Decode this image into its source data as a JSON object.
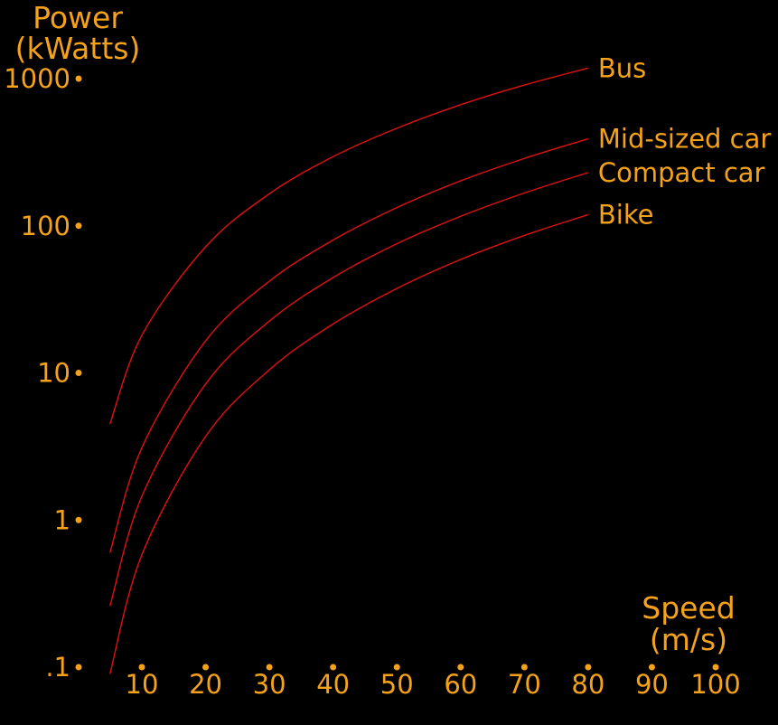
{
  "chart_data": {
    "type": "line",
    "title": "",
    "ylabel_lines": [
      "Power",
      "(kWatts)"
    ],
    "xlabel_lines": [
      "Speed",
      "(m/s)"
    ],
    "y_scale": "log",
    "xlim": [
      5,
      100
    ],
    "ylim": [
      0.1,
      1000
    ],
    "x_ticks": [
      10,
      20,
      30,
      40,
      50,
      60,
      70,
      80,
      90,
      100
    ],
    "x_tick_labels": [
      "10",
      "20",
      "30",
      "40",
      "50",
      "60",
      "70",
      "80",
      "90",
      "100"
    ],
    "y_ticks": [
      0.1,
      1,
      10,
      100,
      1000
    ],
    "y_tick_labels": [
      ".1",
      "1",
      "10",
      "100",
      "1000"
    ],
    "grid": false,
    "line_color": "#e01010",
    "text_color": "#f5a21a",
    "background": "#000000",
    "series": [
      {
        "name": "Bus",
        "x": [
          5,
          10,
          20,
          30,
          40,
          50,
          60,
          70,
          80
        ],
        "y": [
          4.5,
          18,
          72,
          165,
          295,
          460,
          665,
          905,
          1180
        ]
      },
      {
        "name": "Mid-sized car",
        "x": [
          5,
          10,
          20,
          30,
          40,
          50,
          60,
          70,
          80
        ],
        "y": [
          0.6,
          3.1,
          16.5,
          42,
          80,
          133,
          202,
          287,
          390
        ]
      },
      {
        "name": "Compact car",
        "x": [
          5,
          10,
          20,
          30,
          40,
          50,
          60,
          70,
          80
        ],
        "y": [
          0.26,
          1.45,
          8.4,
          22.5,
          44.5,
          75.5,
          116,
          167,
          230
        ]
      },
      {
        "name": "Bike",
        "x": [
          5,
          10,
          20,
          30,
          40,
          50,
          60,
          70,
          80
        ],
        "y": [
          0.09,
          0.58,
          3.7,
          10.5,
          21.5,
          37.5,
          59,
          86,
          119
        ]
      }
    ]
  }
}
